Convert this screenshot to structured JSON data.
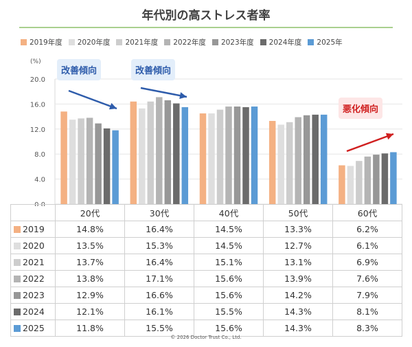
{
  "chart_data": {
    "type": "bar",
    "title": "年代別の高ストレス者率",
    "ylabel": "(%)",
    "ylim": [
      0,
      20
    ],
    "yticks": [
      "0.0",
      "4.0",
      "8.0",
      "12.0",
      "16.0",
      "20.0"
    ],
    "grid": true,
    "legend_position": "top",
    "categories": [
      "20代",
      "30代",
      "40代",
      "50代",
      "60代"
    ],
    "series": [
      {
        "name": "2019年度",
        "row_label": "2019",
        "color": "#f4b183",
        "values": [
          14.8,
          16.4,
          14.5,
          13.3,
          6.2
        ],
        "labels": [
          "14.8%",
          "16.4%",
          "14.5%",
          "13.3%",
          "6.2%"
        ]
      },
      {
        "name": "2020年度",
        "row_label": "2020",
        "color": "#dedede",
        "values": [
          13.5,
          15.3,
          14.5,
          12.7,
          6.1
        ],
        "labels": [
          "13.5%",
          "15.3%",
          "14.5%",
          "12.7%",
          "6.1%"
        ]
      },
      {
        "name": "2021年度",
        "row_label": "2021",
        "color": "#cdcdcd",
        "values": [
          13.7,
          16.4,
          15.1,
          13.1,
          6.9
        ],
        "labels": [
          "13.7%",
          "16.4%",
          "15.1%",
          "13.1%",
          "6.9%"
        ]
      },
      {
        "name": "2022年度",
        "row_label": "2022",
        "color": "#b4b4b4",
        "values": [
          13.8,
          17.1,
          15.6,
          13.9,
          7.6
        ],
        "labels": [
          "13.8%",
          "17.1%",
          "15.6%",
          "13.9%",
          "7.6%"
        ]
      },
      {
        "name": "2023年度",
        "row_label": "2023",
        "color": "#979797",
        "values": [
          12.9,
          16.6,
          15.6,
          14.2,
          7.9
        ],
        "labels": [
          "12.9%",
          "16.6%",
          "15.6%",
          "14.2%",
          "7.9%"
        ]
      },
      {
        "name": "2024年度",
        "row_label": "2024",
        "color": "#6b6b6b",
        "values": [
          12.1,
          16.1,
          15.5,
          14.3,
          8.1
        ],
        "labels": [
          "12.1%",
          "16.1%",
          "15.5%",
          "14.3%",
          "8.1%"
        ]
      },
      {
        "name": "2025年",
        "row_label": "2025",
        "color": "#5b9bd5",
        "values": [
          11.8,
          15.5,
          15.6,
          14.3,
          8.3
        ],
        "labels": [
          "11.8%",
          "15.5%",
          "15.6%",
          "14.3%",
          "8.3%"
        ]
      }
    ],
    "annotations": [
      {
        "text": "改善傾向",
        "tone": "improving",
        "color": "#2e5cab",
        "arrow": "down"
      },
      {
        "text": "改善傾向",
        "tone": "improving",
        "color": "#2e5cab",
        "arrow": "down"
      },
      {
        "text": "悪化傾向",
        "tone": "worsening",
        "color": "#d02020",
        "arrow": "up"
      }
    ]
  },
  "footer": {
    "copyright": "© 2026 Doctor Trust Co., Ltd."
  }
}
